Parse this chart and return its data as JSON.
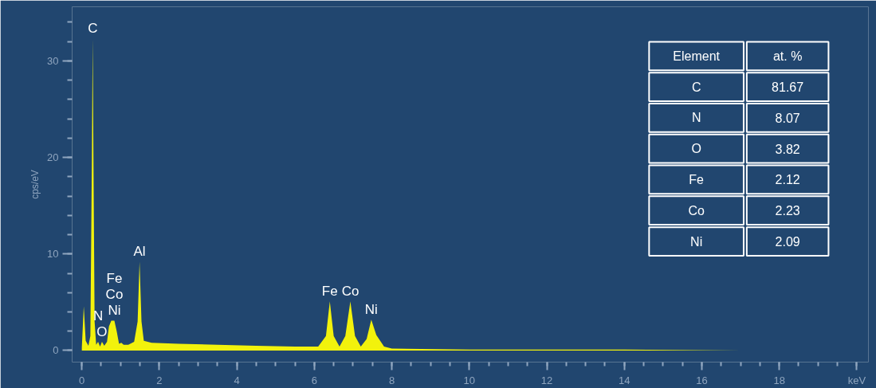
{
  "chart_data": {
    "type": "area",
    "xlabel": null,
    "ylabel": "cps/eV",
    "x": [
      0.0,
      0.05,
      0.1,
      0.17,
      0.22,
      0.26,
      0.28,
      0.3,
      0.33,
      0.37,
      0.42,
      0.47,
      0.52,
      0.58,
      0.65,
      0.7,
      0.76,
      0.84,
      0.9,
      0.96,
      1.02,
      1.08,
      1.2,
      1.35,
      1.44,
      1.49,
      1.54,
      1.6,
      1.8,
      2.5,
      3.5,
      4.5,
      5.5,
      6.1,
      6.3,
      6.4,
      6.5,
      6.65,
      6.8,
      6.93,
      7.05,
      7.2,
      7.35,
      7.47,
      7.6,
      7.8,
      8.0,
      10.0,
      14.0,
      17.0
    ],
    "series": [
      {
        "color": "#f2f20c",
        "values": [
          0.3,
          4.6,
          1.0,
          0.5,
          1.5,
          20,
          32.3,
          20,
          3,
          0.6,
          0.9,
          0.4,
          0.9,
          0.5,
          0.9,
          2.5,
          3.1,
          3.1,
          2.0,
          0.7,
          0.8,
          0.6,
          0.6,
          0.9,
          3,
          9.2,
          3,
          1.0,
          0.8,
          0.7,
          0.6,
          0.5,
          0.4,
          0.4,
          1.5,
          5.1,
          1.5,
          0.4,
          1.5,
          5.1,
          1.5,
          0.4,
          1.2,
          3.2,
          1.6,
          0.4,
          0.2,
          0.1,
          0.1,
          0.0
        ]
      }
    ],
    "xlim": [
      -0.25,
      20.3
    ],
    "ylim": [
      -1.2,
      35.6
    ],
    "xticks": [
      0,
      2,
      4,
      6,
      8,
      10,
      12,
      14,
      16,
      18,
      {
        "value": 20,
        "label": "keV"
      }
    ],
    "yticks": [
      0,
      10,
      20,
      30
    ],
    "grid": false,
    "annotations": [
      {
        "text": "C",
        "x": 0.28,
        "y": 32.3
      },
      {
        "text": "O",
        "x": 0.52,
        "y": 0.9
      },
      {
        "text": "N",
        "x": 0.42,
        "y": 0.9
      },
      {
        "text": "Ni",
        "x": 0.84,
        "y": 3.1
      },
      {
        "text": "Co",
        "x": 0.84,
        "y": 3.1
      },
      {
        "text": "Fe",
        "x": 0.84,
        "y": 3.1
      },
      {
        "text": "Al",
        "x": 1.49,
        "y": 9.2
      },
      {
        "text": "Fe",
        "x": 6.4,
        "y": 5.1
      },
      {
        "text": "Co",
        "x": 6.93,
        "y": 5.1
      },
      {
        "text": "Ni",
        "x": 7.47,
        "y": 3.2
      },
      "Element",
      "at. %",
      "C",
      "81.67",
      "N",
      "8.07",
      "O",
      "3.82",
      "Fe",
      "2.12",
      "Co",
      "2.23",
      "Ni",
      "2.09"
    ]
  }
}
